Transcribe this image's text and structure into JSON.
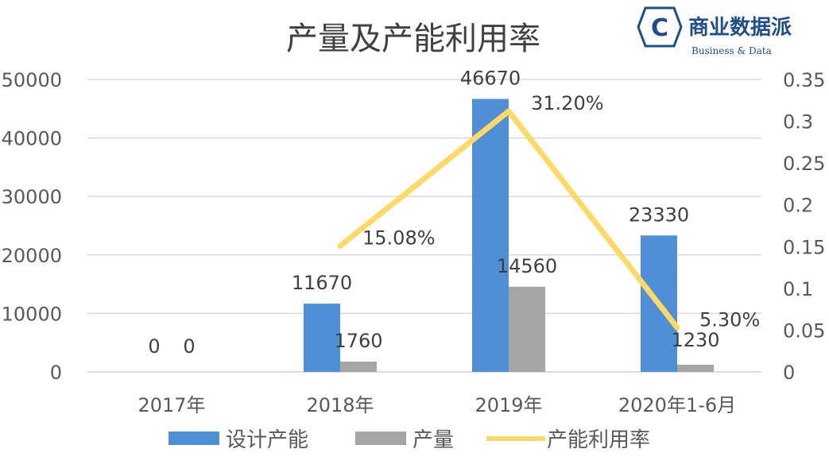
{
  "logo": {
    "mark": "C",
    "name": "商业数据派",
    "subtitle": "Business & Data"
  },
  "colors": {
    "capacity": "#4f8fd6",
    "output": "#a5a5a5",
    "utilization": "#ffd966",
    "grid": "#d9d9d9",
    "logo": "#1f4e8c"
  },
  "chart_data": {
    "type": "bar",
    "title": "产量及产能利用率",
    "categories": [
      "2017年",
      "2018年",
      "2019年",
      "2020年1-6月"
    ],
    "series": [
      {
        "name": "设计产能",
        "type": "bar",
        "axis": "left",
        "values": [
          0,
          11670,
          46670,
          23330
        ],
        "labels": [
          "0",
          "11670",
          "46670",
          "23330"
        ]
      },
      {
        "name": "产量",
        "type": "bar",
        "axis": "left",
        "values": [
          0,
          1760,
          14560,
          1230
        ],
        "labels": [
          "0",
          "1760",
          "14560",
          "1230"
        ]
      },
      {
        "name": "产能利用率",
        "type": "line",
        "axis": "right",
        "values": [
          null,
          0.1508,
          0.312,
          0.053
        ],
        "labels": [
          "",
          "15.08%",
          "31.20%",
          "5.30%"
        ]
      }
    ],
    "y_left": {
      "min": 0,
      "max": 50000,
      "ticks": [
        "0",
        "10000",
        "20000",
        "30000",
        "40000",
        "50000"
      ]
    },
    "y_right": {
      "min": 0,
      "max": 0.35,
      "ticks": [
        "0",
        "0.05",
        "0.1",
        "0.15",
        "0.2",
        "0.25",
        "0.3",
        "0.35"
      ]
    },
    "grid": true,
    "legend": "bottom"
  }
}
